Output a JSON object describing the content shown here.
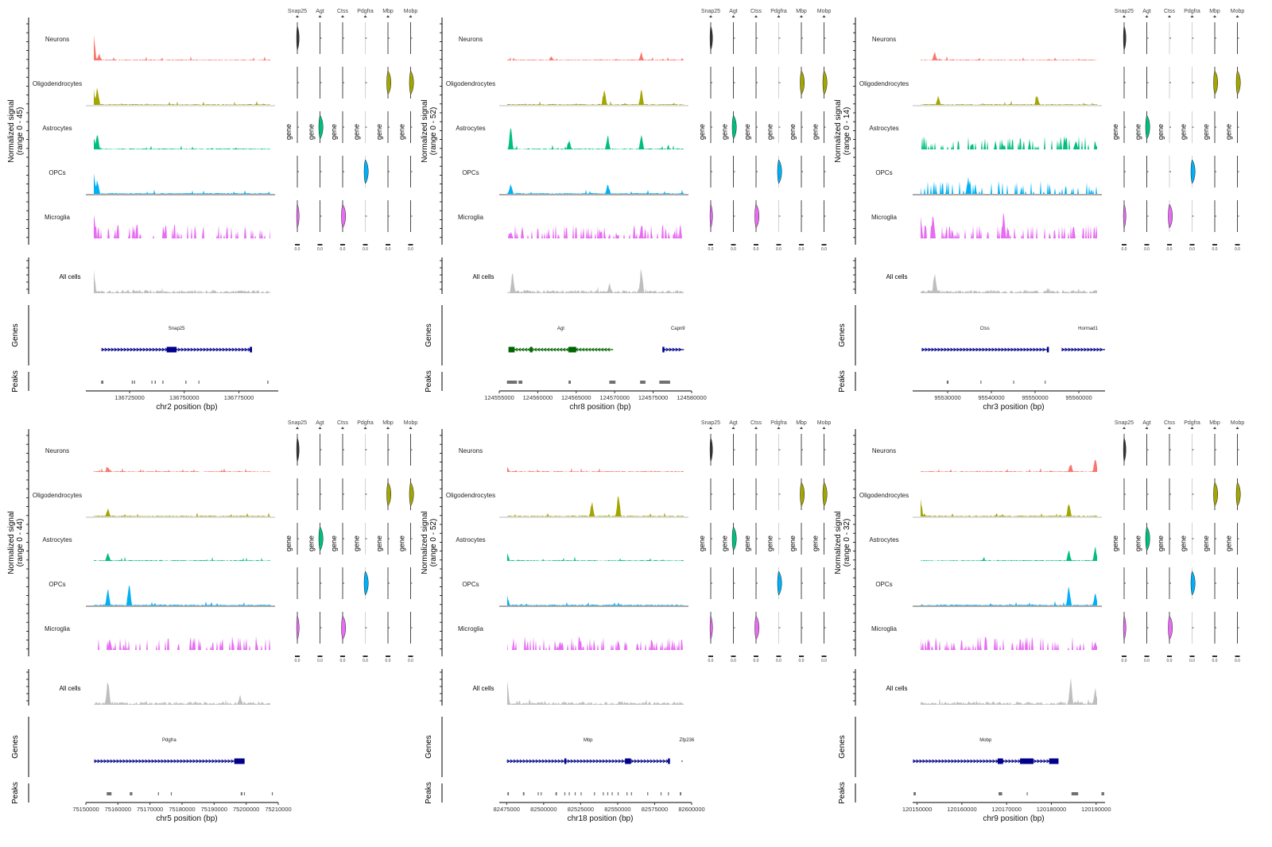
{
  "figure": {
    "cell_types": [
      "Neurons",
      "Oligodendrocytes",
      "Astrocytes",
      "OPCs",
      "Microglia"
    ],
    "cell_colors": [
      "#F8766D",
      "#A3A500",
      "#00BF7D",
      "#00B0F6",
      "#E76BF3"
    ],
    "all_cells_label": "All cells",
    "all_cells_color": "#BEBEBE",
    "genes_track_label": "Genes",
    "peaks_track_label": "Peaks",
    "violin_axis_label": "gene",
    "violin_genes": [
      "Snap25",
      "Agt",
      "Ctss",
      "Pdgfra",
      "Mbp",
      "Mobp"
    ],
    "violin_genes_display": [
      "Snap25",
      "Agt",
      "Ctss",
      "Pdgfrа",
      "Mbp",
      "Mobp"
    ],
    "violin_highlight": {
      "Neurons": [
        "Snap25"
      ],
      "Oligodendrocytes": [
        "Mbp",
        "Mobp"
      ],
      "Astrocytes": [
        "Agt"
      ],
      "OPCs": [
        "Pdgfra"
      ],
      "Microglia": [
        "Snap25",
        "Ctss"
      ]
    },
    "plus_strand_color": "#00008B",
    "minus_strand_color": "#006400",
    "peak_color": "#707070"
  },
  "chart_data": [
    {
      "type": "area",
      "panel": "top-left",
      "ylabel": "Normalized signal\n(range 0 - 45)",
      "y_range": [
        0,
        45
      ],
      "xlabel": "chr2 position (bp)",
      "x_range": [
        136705000,
        136793000
      ],
      "x_ticks": [
        136725000,
        136750000,
        136775000
      ],
      "x_tick_labels": [
        "136725000",
        "136750000",
        "136775000"
      ],
      "genes": [
        {
          "name": "Snap25",
          "start": 136712000,
          "end": 136781000,
          "strand": "+",
          "exons": [
            [
              136742000,
              136746500
            ],
            [
              136780000,
              136781000
            ]
          ]
        }
      ],
      "peaks": [
        [
          136712000,
          136713000
        ],
        [
          136726000,
          136726500
        ],
        [
          136727000,
          136727500
        ],
        [
          136735000,
          136735400
        ],
        [
          136736500,
          136737000
        ],
        [
          136740000,
          136740500
        ],
        [
          136750500,
          136751000
        ],
        [
          136756500,
          136756700
        ],
        [
          136788000,
          136788500
        ]
      ],
      "track_peaks": {
        "Neurons": [
          [
            0.0,
            1.0
          ],
          [
            0.03,
            0.25
          ]
        ],
        "Oligodendrocytes": [
          [
            0.0,
            0.55
          ],
          [
            0.02,
            0.7
          ]
        ],
        "Astrocytes": [
          [
            0.0,
            0.45
          ],
          [
            0.02,
            0.6
          ]
        ],
        "OPCs": [
          [
            0.0,
            0.75
          ],
          [
            0.02,
            0.55
          ]
        ],
        "Microglia": [
          [
            0.0,
            0.9
          ]
        ],
        "All cells": [
          [
            0.0,
            0.85
          ]
        ]
      }
    },
    {
      "type": "area",
      "panel": "top-middle",
      "ylabel": "Normalized signal\n(range 0 - 52)",
      "y_range": [
        0,
        52
      ],
      "xlabel": "chr8 position (bp)",
      "x_range": [
        124555000,
        124580000
      ],
      "x_ticks": [
        124555000,
        124560000,
        124565000,
        124570000,
        124575000,
        124580000
      ],
      "x_tick_labels": [
        "124555000",
        "124560000",
        "124565000",
        "124570000",
        "124575000",
        "124580000"
      ],
      "genes": [
        {
          "name": "Agt",
          "start": 124556200,
          "end": 124569800,
          "strand": "-",
          "exons": [
            [
              124556200,
              124557000
            ],
            [
              124559000,
              124559300
            ],
            [
              124564000,
              124565000
            ]
          ]
        },
        {
          "name": "Capn9",
          "start": 124576200,
          "end": 124579000,
          "strand": "+",
          "exons": [
            [
              124576200,
              124576400
            ]
          ]
        }
      ],
      "peaks": [
        [
          124556000,
          124557300
        ],
        [
          124557500,
          124558000
        ],
        [
          124564000,
          124564300
        ],
        [
          124569300,
          124570100
        ],
        [
          124573300,
          124574000
        ],
        [
          124575800,
          124577200
        ]
      ],
      "track_peaks": {
        "Neurons": [
          [
            0.25,
            0.15
          ],
          [
            0.76,
            0.3
          ]
        ],
        "Oligodendrocytes": [
          [
            0.55,
            0.65
          ],
          [
            0.76,
            0.55
          ]
        ],
        "Astrocytes": [
          [
            0.02,
            0.9
          ],
          [
            0.35,
            0.35
          ],
          [
            0.57,
            0.55
          ],
          [
            0.76,
            0.55
          ]
        ],
        "OPCs": [
          [
            0.02,
            0.4
          ],
          [
            0.57,
            0.35
          ]
        ],
        "Microglia": [
          [
            0.02,
            0.25
          ],
          [
            0.76,
            0.3
          ]
        ],
        "All cells": [
          [
            0.03,
            0.75
          ],
          [
            0.58,
            0.35
          ],
          [
            0.76,
            1.0
          ]
        ]
      }
    },
    {
      "type": "area",
      "panel": "top-right",
      "ylabel": "Normalized signal\n(range 0 - 14)",
      "y_range": [
        0,
        14
      ],
      "xlabel": "chr3 position (bp)",
      "x_range": [
        95522000,
        95566000
      ],
      "x_ticks": [
        95530000,
        95540000,
        95550000,
        95560000
      ],
      "x_tick_labels": [
        "95530000",
        "95540000",
        "95550000",
        "95560000"
      ],
      "genes": [
        {
          "name": "Ctss",
          "start": 95524000,
          "end": 95553000,
          "strand": "+",
          "exons": [
            [
              95552700,
              95553000
            ]
          ]
        },
        {
          "name": "Hormad1",
          "start": 95556000,
          "end": 95566000,
          "strand": "+",
          "exons": []
        }
      ],
      "peaks": [
        [
          95529800,
          95530200
        ],
        [
          95537500,
          95537700
        ],
        [
          95545000,
          95545200
        ],
        [
          95552200,
          95552400
        ]
      ],
      "track_peaks": {
        "Neurons": [
          [
            0.08,
            0.3
          ]
        ],
        "Oligodendrocytes": [
          [
            0.1,
            0.3
          ],
          [
            0.66,
            0.35
          ]
        ],
        "Astrocytes": [
          [
            0.88,
            0.35
          ]
        ],
        "OPCs": [
          [
            0.27,
            0.55
          ]
        ],
        "Microglia": [
          [
            0.0,
            0.85
          ],
          [
            0.07,
            0.9
          ],
          [
            0.47,
            0.9
          ]
        ],
        "All cells": [
          [
            0.08,
            0.85
          ]
        ]
      }
    },
    {
      "type": "area",
      "panel": "bottom-left",
      "ylabel": "Normalized signal\n(range 0 - 44)",
      "y_range": [
        0,
        44
      ],
      "xlabel": "chr5 position (bp)",
      "x_range": [
        75150000,
        75210000
      ],
      "x_ticks": [
        75150000,
        75160000,
        75170000,
        75180000,
        75190000,
        75200000,
        75210000
      ],
      "x_tick_labels": [
        "75150000",
        "75160000",
        "75170000",
        "75180000",
        "75190000",
        "75200000",
        "75210000"
      ],
      "genes": [
        {
          "name": "Pdgfra",
          "start": 75152500,
          "end": 75199500,
          "strand": "+",
          "exons": [
            [
              75196300,
              75199500
            ]
          ]
        }
      ],
      "peaks": [
        [
          75156500,
          75158000
        ],
        [
          75163700,
          75164500
        ],
        [
          75172500,
          75172700
        ],
        [
          75176500,
          75176700
        ],
        [
          75198300,
          75198800
        ],
        [
          75199300,
          75199600
        ],
        [
          75208000,
          75208200
        ]
      ],
      "track_peaks": {
        "Neurons": [
          [
            0.08,
            0.2
          ]
        ],
        "Oligodendrocytes": [
          [
            0.08,
            0.3
          ]
        ],
        "Astrocytes": [
          [
            0.08,
            0.35
          ]
        ],
        "OPCs": [
          [
            0.08,
            0.65
          ],
          [
            0.2,
            0.9
          ]
        ],
        "Microglia": [
          [
            0.09,
            0.4
          ]
        ],
        "All cells": [
          [
            0.08,
            0.95
          ],
          [
            0.83,
            0.35
          ]
        ]
      }
    },
    {
      "type": "area",
      "panel": "bottom-middle",
      "ylabel": "Normalized signal\n(range 0 - 52)",
      "y_range": [
        0,
        52
      ],
      "xlabel": "chr18 position (bp)",
      "x_range": [
        82470000,
        82600000
      ],
      "x_ticks": [
        82475000,
        82500000,
        82525000,
        82550000,
        82575000,
        82600000
      ],
      "x_tick_labels": [
        "82475000",
        "82500000",
        "82525000",
        "82550000",
        "82575000",
        "82600000"
      ],
      "genes": [
        {
          "name": "Mbp",
          "start": 82475000,
          "end": 82585000,
          "strand": "+",
          "exons": [
            [
              82514000,
              82515000
            ],
            [
              82555000,
              82559000
            ],
            [
              82584000,
              82585000
            ]
          ]
        },
        {
          "name": "Zfp236",
          "start": 82593000,
          "end": 82594000,
          "strand": "-",
          "exons": []
        }
      ],
      "peaks": [
        [
          82475500,
          82476500
        ],
        [
          82486000,
          82487000
        ],
        [
          82496000,
          82496400
        ],
        [
          82498000,
          82498400
        ],
        [
          82508000,
          82509000
        ],
        [
          82514000,
          82514400
        ],
        [
          82517000,
          82517300
        ],
        [
          82521000,
          82521300
        ],
        [
          82525000,
          82525300
        ],
        [
          82534000,
          82534300
        ],
        [
          82540000,
          82540300
        ],
        [
          82543000,
          82543300
        ],
        [
          82546000,
          82546300
        ],
        [
          82550000,
          82550300
        ],
        [
          82556000,
          82556300
        ],
        [
          82559000,
          82559300
        ],
        [
          82570000,
          82570300
        ],
        [
          82579000,
          82579300
        ],
        [
          82584000,
          82584300
        ],
        [
          82592000,
          82593000
        ]
      ],
      "track_peaks": {
        "Neurons": [
          [
            0.0,
            0.2
          ]
        ],
        "Oligodendrocytes": [
          [
            0.63,
            0.9
          ],
          [
            0.48,
            0.55
          ]
        ],
        "Astrocytes": [
          [
            0.0,
            0.3
          ]
        ],
        "OPCs": [
          [
            0.0,
            0.35
          ]
        ],
        "Microglia": [
          [
            0.3,
            0.3
          ]
        ],
        "All cells": [
          [
            0.0,
            0.85
          ]
        ]
      }
    },
    {
      "type": "area",
      "panel": "bottom-right",
      "ylabel": "Normalized signal\n(range 0 - 32)",
      "y_range": [
        0,
        32
      ],
      "xlabel": "chr9 position (bp)",
      "x_range": [
        120149000,
        120192000
      ],
      "x_ticks": [
        120150000,
        120160000,
        120170000,
        120180000,
        120190000
      ],
      "x_tick_labels": [
        "120150000",
        "120160000",
        "120170000",
        "120180000",
        "120190000"
      ],
      "genes": [
        {
          "name": "Mobp",
          "start": 120149000,
          "end": 120181600,
          "strand": "+",
          "exons": [
            [
              120168000,
              120169200
            ],
            [
              120173000,
              120176000
            ],
            [
              120179500,
              120181600
            ]
          ]
        }
      ],
      "peaks": [
        [
          120149200,
          120149700
        ],
        [
          120168200,
          120169000
        ],
        [
          120174500,
          120174700
        ],
        [
          120184500,
          120186000
        ],
        [
          120191200,
          120191800
        ]
      ],
      "track_peaks": {
        "Neurons": [
          [
            0.85,
            0.35
          ],
          [
            0.99,
            0.55
          ]
        ],
        "Oligodendrocytes": [
          [
            0.0,
            0.6
          ],
          [
            0.84,
            0.55
          ]
        ],
        "Astrocytes": [
          [
            0.84,
            0.4
          ],
          [
            0.99,
            0.5
          ]
        ],
        "OPCs": [
          [
            0.84,
            0.75
          ],
          [
            0.99,
            0.45
          ]
        ],
        "Microglia": [
          [
            0.99,
            0.3
          ]
        ],
        "All cells": [
          [
            0.85,
            0.95
          ],
          [
            0.99,
            0.65
          ]
        ]
      }
    }
  ]
}
